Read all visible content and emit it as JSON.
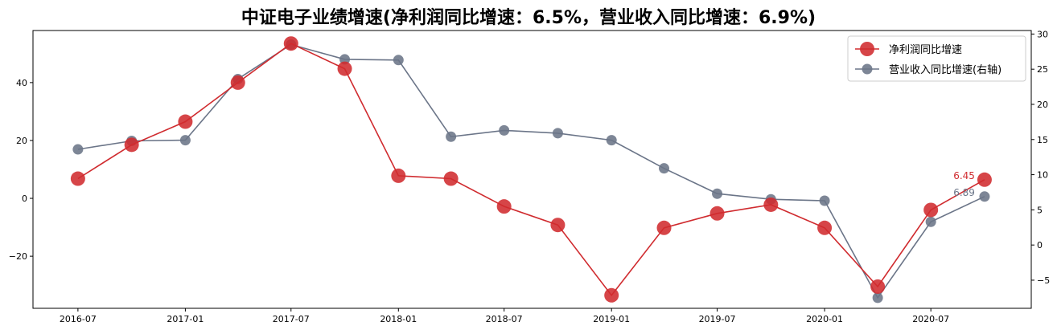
{
  "chart_data": {
    "type": "line",
    "title": "中证电子业绩增速(净利润同比增速：6.5%，营业收入同比增速：6.9%)",
    "x": [
      "2016-07-01",
      "2016-10-01",
      "2017-01-01",
      "2017-04-01",
      "2017-07-01",
      "2017-10-01",
      "2018-01-01",
      "2018-04-01",
      "2018-07-01",
      "2018-10-01",
      "2019-01-01",
      "2019-04-01",
      "2019-07-01",
      "2019-10-01",
      "2020-01-01",
      "2020-04-01",
      "2020-07-01",
      "2020-10-01"
    ],
    "x_ticks": [
      "2016-07",
      "2017-01",
      "2017-07",
      "2018-01",
      "2018-07",
      "2019-01",
      "2019-07",
      "2020-01",
      "2020-07"
    ],
    "xlim": [
      "2016-04-15",
      "2020-12-20"
    ],
    "left_axis": {
      "ylim": [
        -38,
        58
      ],
      "ticks": [
        -20,
        0,
        20,
        40
      ]
    },
    "right_axis": {
      "ylim": [
        -9,
        30.5
      ],
      "ticks": [
        -5,
        0,
        5,
        10,
        15,
        20,
        25,
        30
      ]
    },
    "series": [
      {
        "name": "净利润同比增速",
        "axis": "left",
        "color": "#d02b2f",
        "marker": "circle-large",
        "values": [
          6.8,
          18.5,
          26.5,
          40.0,
          53.5,
          44.8,
          7.8,
          6.8,
          -2.8,
          -9.2,
          -33.5,
          -10.2,
          -5.2,
          -2.2,
          -10.2,
          -30.5,
          -4.0,
          6.45
        ],
        "end_label": "6.45"
      },
      {
        "name": "营业收入同比增速(右轴)",
        "axis": "right",
        "color": "#6b7588",
        "marker": "circle",
        "values": [
          13.6,
          14.8,
          14.9,
          23.6,
          28.5,
          26.4,
          26.3,
          15.4,
          16.3,
          15.9,
          14.9,
          10.9,
          7.3,
          6.5,
          6.3,
          -7.5,
          3.3,
          6.89
        ],
        "end_label": "6.89"
      }
    ],
    "legend": {
      "position": "top-right"
    },
    "grid": false
  }
}
